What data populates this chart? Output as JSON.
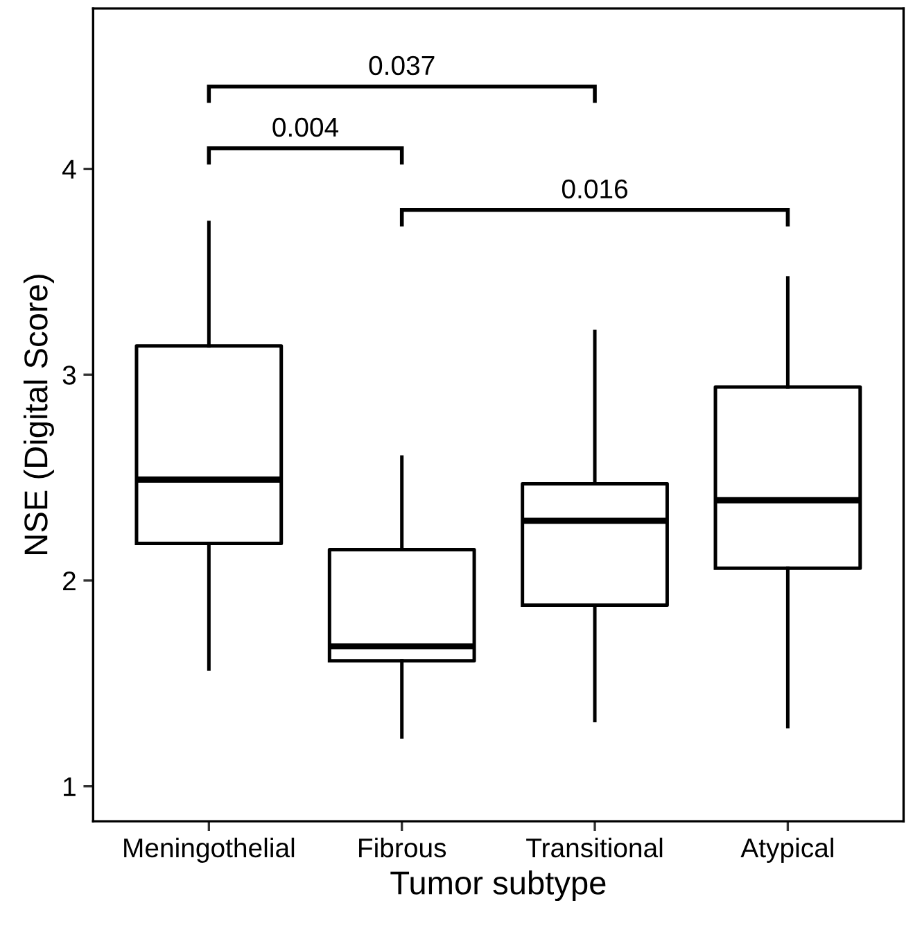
{
  "chart_data": {
    "type": "box",
    "xlabel": "Tumor subtype",
    "ylabel": "NSE (Digital Score)",
    "categories": [
      "Meningothelial",
      "Fibrous",
      "Transitional",
      "Atypical"
    ],
    "boxes": [
      {
        "low": 1.57,
        "q1": 2.18,
        "median": 2.49,
        "q3": 3.14,
        "high": 3.74
      },
      {
        "low": 1.24,
        "q1": 1.61,
        "median": 1.68,
        "q3": 2.15,
        "high": 2.6
      },
      {
        "low": 1.32,
        "q1": 1.88,
        "median": 2.29,
        "q3": 2.47,
        "high": 3.21
      },
      {
        "low": 1.29,
        "q1": 2.06,
        "median": 2.39,
        "q3": 2.94,
        "high": 3.47
      }
    ],
    "ylim": [
      0.83,
      4.78
    ],
    "yticks": [
      1,
      2,
      3,
      4
    ],
    "grid": false,
    "annotations": [
      "0.004",
      "0.037",
      "0.016"
    ]
  }
}
